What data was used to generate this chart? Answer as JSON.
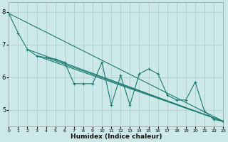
{
  "xlabel": "Humidex (Indice chaleur)",
  "bg_color": "#cce8e8",
  "grid_color": "#aacece",
  "line_color": "#1a7a6e",
  "xlim": [
    0,
    23
  ],
  "ylim": [
    4.5,
    8.3
  ],
  "xticks": [
    0,
    1,
    2,
    3,
    4,
    5,
    6,
    7,
    8,
    9,
    10,
    11,
    12,
    13,
    14,
    15,
    16,
    17,
    18,
    19,
    20,
    21,
    22,
    23
  ],
  "yticks": [
    5,
    6,
    7,
    8
  ],
  "main_x": [
    0,
    1,
    2,
    3,
    4,
    5,
    6,
    7,
    8,
    9,
    10,
    11,
    12,
    13,
    14,
    15,
    16,
    17,
    18,
    19,
    20,
    21,
    22,
    23
  ],
  "main_y": [
    7.95,
    7.35,
    6.85,
    6.65,
    6.6,
    6.55,
    6.45,
    5.8,
    5.8,
    5.8,
    6.45,
    5.15,
    6.05,
    5.15,
    6.1,
    6.25,
    6.1,
    5.45,
    5.3,
    5.3,
    5.85,
    4.95,
    4.7,
    4.65
  ],
  "trend_lines": [
    {
      "x": [
        0,
        23
      ],
      "y": [
        7.95,
        4.65
      ]
    },
    {
      "x": [
        2,
        23
      ],
      "y": [
        6.85,
        4.65
      ]
    },
    {
      "x": [
        3,
        23
      ],
      "y": [
        6.65,
        4.65
      ]
    },
    {
      "x": [
        4,
        23
      ],
      "y": [
        6.6,
        4.65
      ]
    }
  ]
}
